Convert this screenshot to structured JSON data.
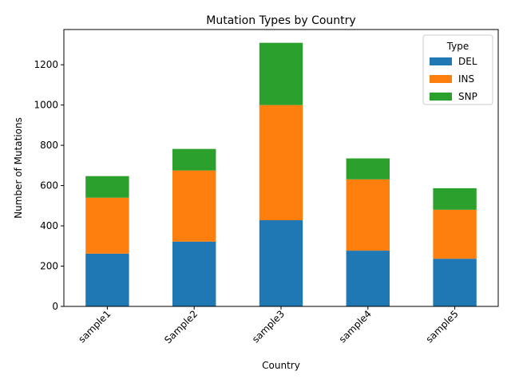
{
  "chart_data": {
    "type": "bar",
    "stacked": true,
    "title": "Mutation Types by Country",
    "xlabel": "Country",
    "ylabel": "Number of Mutations",
    "categories": [
      "sample1",
      "Sample2",
      "sample3",
      "sample4",
      "sample5"
    ],
    "series": [
      {
        "name": "DEL",
        "color": "#1f77b4",
        "values": [
          262,
          322,
          428,
          277,
          237
        ]
      },
      {
        "name": "INS",
        "color": "#ff7f0e",
        "values": [
          278,
          353,
          572,
          354,
          243
        ]
      },
      {
        "name": "SNP",
        "color": "#2ca02c",
        "values": [
          107,
          107,
          309,
          104,
          107
        ]
      }
    ],
    "ylim": [
      0,
      1375
    ],
    "yticks": [
      0,
      200,
      400,
      600,
      800,
      1000,
      1200
    ],
    "legend": {
      "title": "Type",
      "position": "top-right"
    },
    "grid": false
  }
}
